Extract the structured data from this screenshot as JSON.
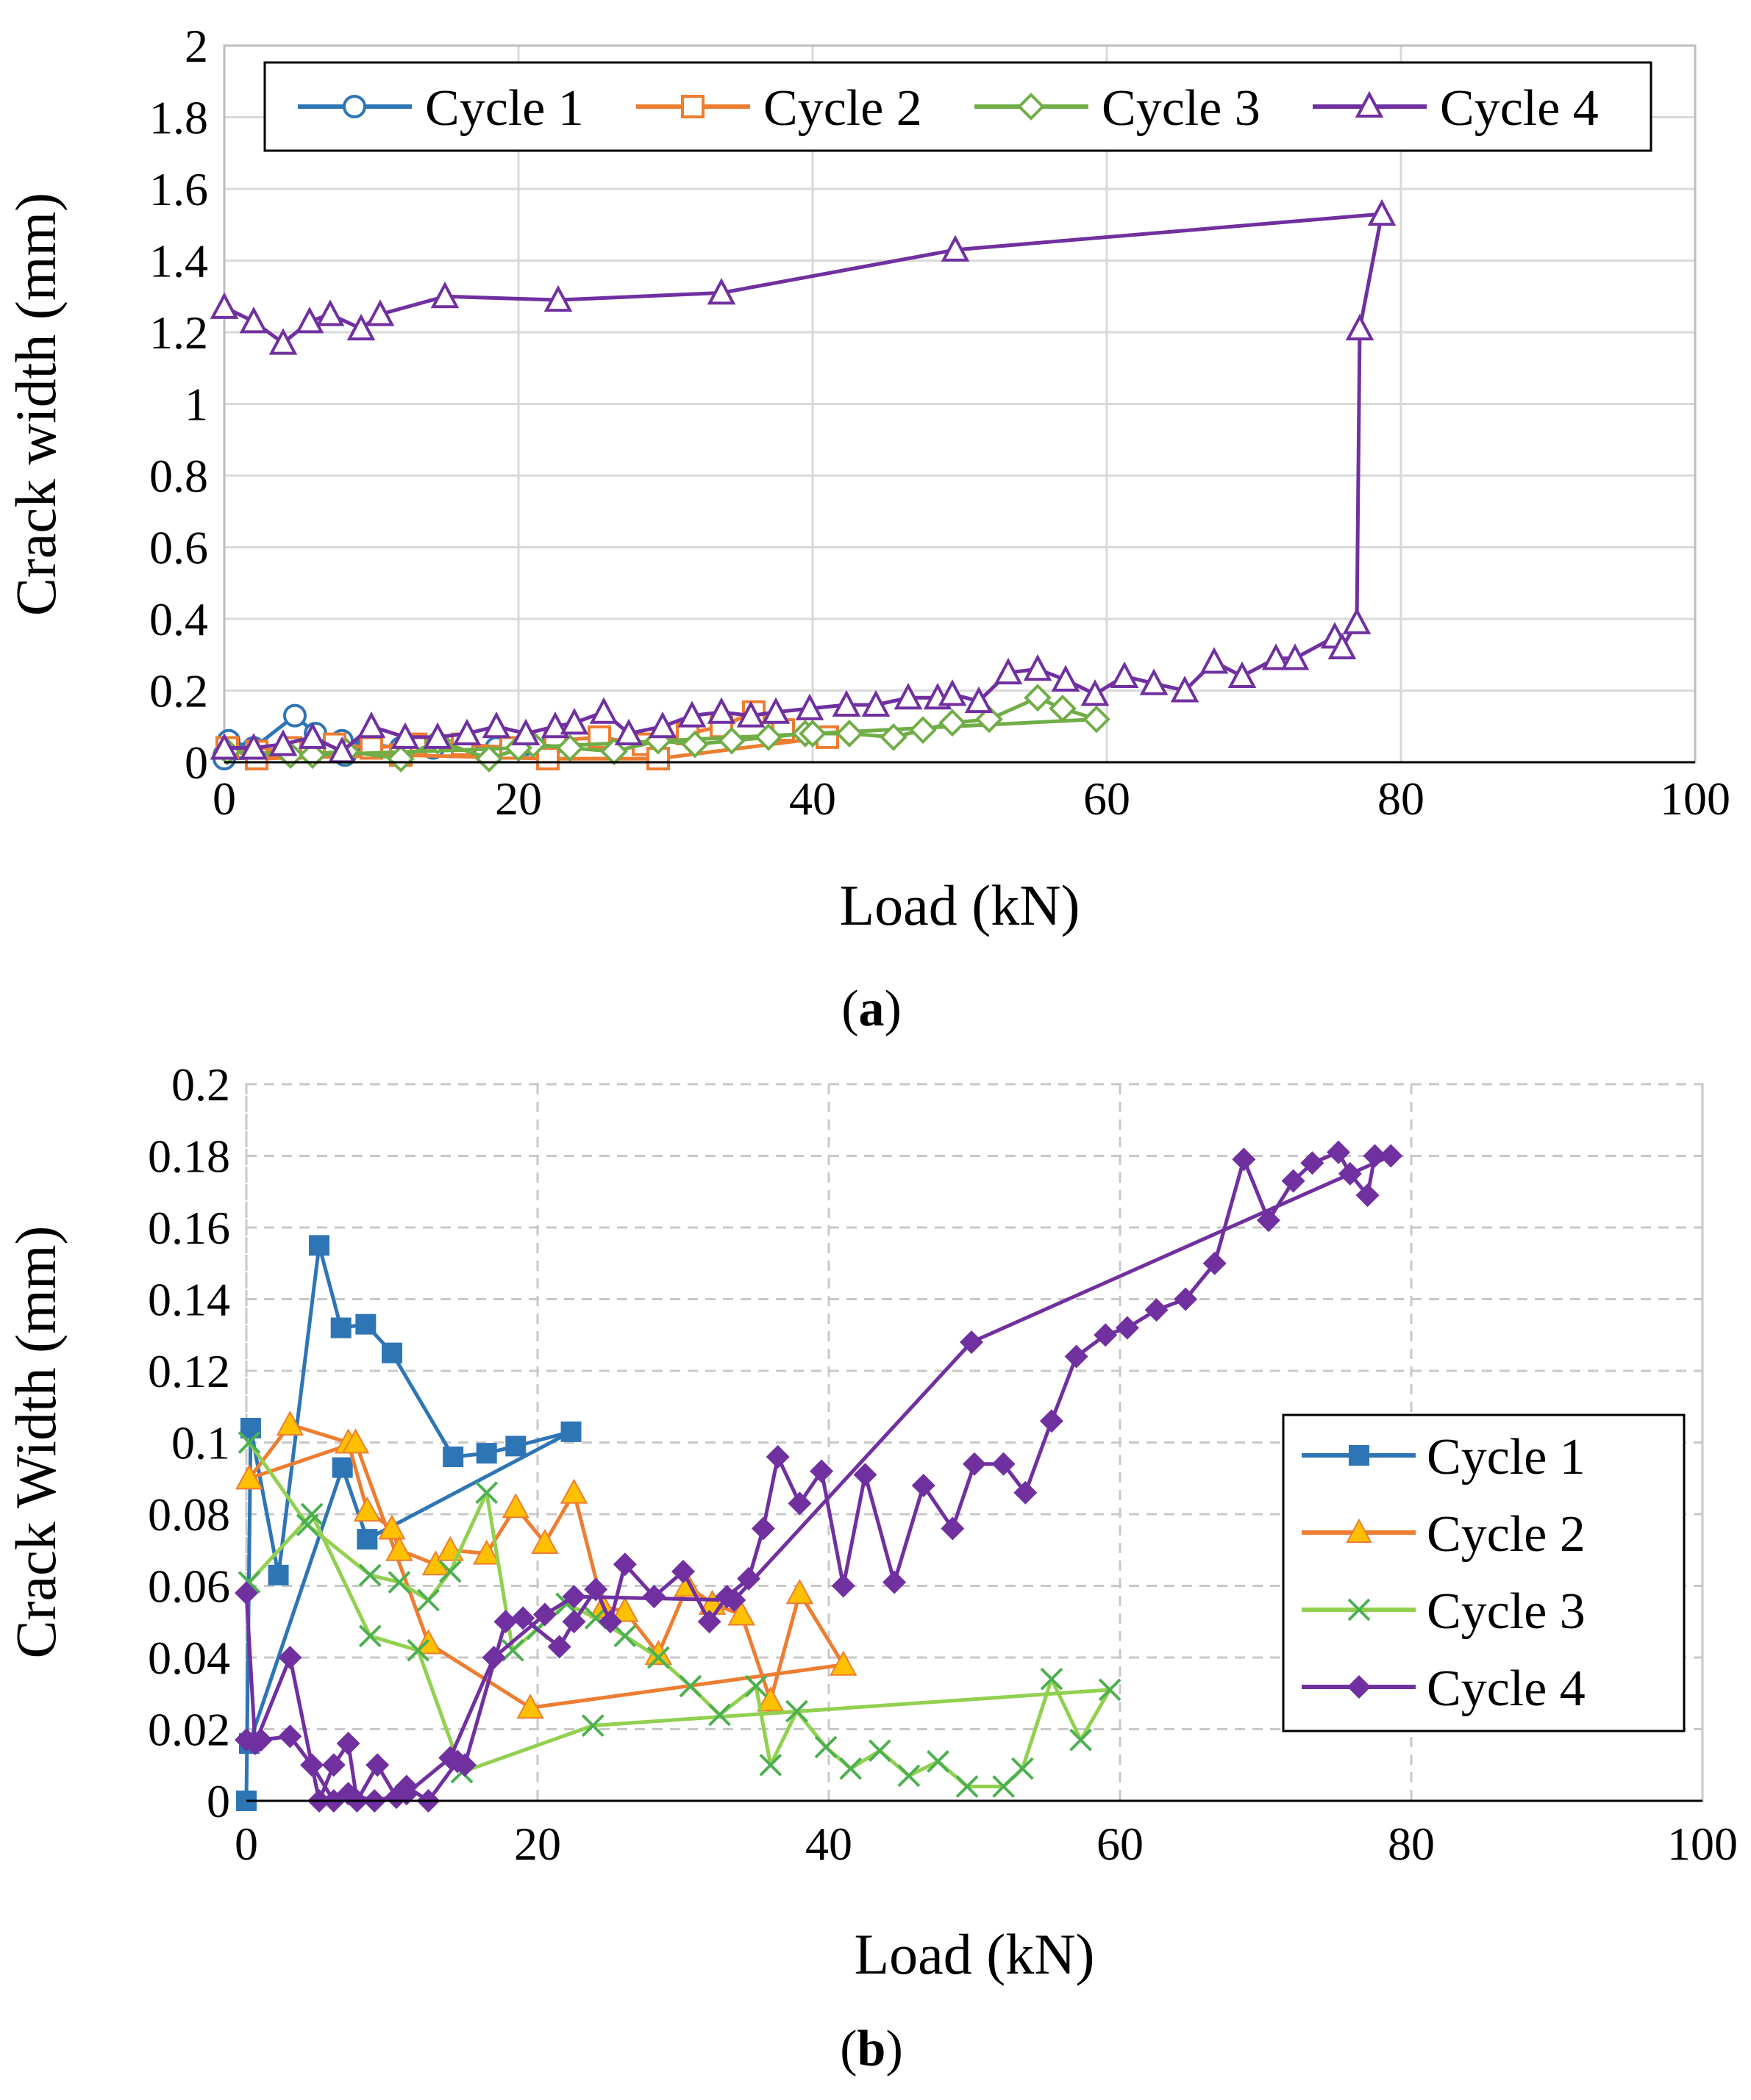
{
  "chart_data": [
    {
      "type": "line",
      "panel": "(a)",
      "caption_letter": "a",
      "xlabel": "Load (kN)",
      "ylabel": "Crack width (mm)",
      "xlim": [
        0,
        100
      ],
      "ylim": [
        0,
        2
      ],
      "xticks": [
        0,
        20,
        40,
        60,
        80,
        100
      ],
      "yticks": [
        0,
        0.2,
        0.4,
        0.6,
        0.8,
        1,
        1.2,
        1.4,
        1.6,
        1.8,
        2
      ],
      "ytick_labels": [
        "0",
        "0.2",
        "0.4",
        "0.6",
        "0.8",
        "1",
        "1.2",
        "1.4",
        "1.6",
        "1.8",
        "2"
      ],
      "grid": "major",
      "legend_position": "top",
      "series": [
        {
          "name": "Cycle 1",
          "color": "#2E75B6",
          "marker": "circle-open",
          "x": [
            0,
            0.3,
            2,
            4.8,
            6.2,
            8,
            9.8,
            12,
            14.2,
            16.5,
            18.5,
            20.5,
            22.3,
            8.2,
            0
          ],
          "y": [
            0.02,
            0.06,
            0.04,
            0.13,
            0.08,
            0.06,
            0.05,
            0.04,
            0.04,
            0.05,
            0.04,
            0.05,
            0.05,
            0.02,
            0.01
          ]
        },
        {
          "name": "Cycle 2",
          "color": "#ED7D31",
          "marker": "square-open",
          "x": [
            0.2,
            2.2,
            4.5,
            7.5,
            10,
            13,
            16.2,
            19.5,
            22.5,
            25.5,
            28.5,
            31.5,
            33.8,
            36,
            38,
            41,
            29.5,
            22,
            12,
            2.2,
            0.2
          ],
          "y": [
            0.04,
            0.03,
            0.04,
            0.05,
            0.04,
            0.05,
            0.05,
            0.04,
            0.06,
            0.07,
            0.05,
            0.08,
            0.1,
            0.14,
            0.09,
            0.07,
            0.01,
            0.01,
            0.02,
            0.01,
            0.04
          ]
        },
        {
          "name": "Cycle 3",
          "color": "#70AD47",
          "marker": "diamond-open",
          "x": [
            0.2,
            4.5,
            8.3,
            12,
            14.5,
            18,
            21,
            23.5,
            26.5,
            29.5,
            32,
            34.5,
            37,
            39.5,
            42.5,
            45.5,
            47.5,
            49.5,
            52,
            55.3,
            57,
            59.3,
            40,
            20,
            6,
            0.2
          ],
          "y": [
            0.03,
            0.02,
            0.03,
            0.01,
            0.06,
            0.01,
            0.05,
            0.04,
            0.03,
            0.06,
            0.05,
            0.06,
            0.07,
            0.08,
            0.08,
            0.07,
            0.09,
            0.11,
            0.12,
            0.18,
            0.15,
            0.12,
            0.08,
            0.04,
            0.02,
            0.03
          ]
        },
        {
          "name": "Cycle 4",
          "color": "#7030A0",
          "marker": "triangle-open",
          "x": [
            0,
            2,
            4,
            6,
            8,
            10,
            12.3,
            14.5,
            16.5,
            18.5,
            20.5,
            22.5,
            23.8,
            25.8,
            27.5,
            29.8,
            31.8,
            33.8,
            35.8,
            37.5,
            39.8,
            42.3,
            44.3,
            46.5,
            48.5,
            49.5,
            51.3,
            53.3,
            55.3,
            57.2,
            59.2,
            61.2,
            63.2,
            65.3,
            67.3,
            69.2,
            71.5,
            72.8,
            75.5,
            76,
            77,
            77.2,
            78.7,
            49.7,
            33.8,
            22.7,
            15,
            10.6,
            9.3,
            7.2,
            5.8,
            4,
            2,
            0
          ],
          "y": [
            0.04,
            0.04,
            0.05,
            0.07,
            0.03,
            0.1,
            0.07,
            0.07,
            0.08,
            0.1,
            0.08,
            0.1,
            0.11,
            0.14,
            0.08,
            0.1,
            0.13,
            0.14,
            0.13,
            0.14,
            0.15,
            0.16,
            0.16,
            0.18,
            0.18,
            0.19,
            0.17,
            0.25,
            0.26,
            0.23,
            0.19,
            0.24,
            0.22,
            0.2,
            0.28,
            0.24,
            0.29,
            0.29,
            0.35,
            0.32,
            0.39,
            1.21,
            1.53,
            1.43,
            1.31,
            1.29,
            1.3,
            1.25,
            1.21,
            1.25,
            1.23,
            1.17,
            1.23,
            1.27
          ]
        }
      ]
    },
    {
      "type": "line",
      "panel": "(b)",
      "caption_letter": "b",
      "xlabel": "Load (kN)",
      "ylabel": "Crack Width (mm)",
      "xlim": [
        0,
        100
      ],
      "ylim": [
        0,
        0.2
      ],
      "xticks": [
        0,
        20,
        40,
        60,
        80,
        100
      ],
      "yticks": [
        0,
        0.02,
        0.04,
        0.06,
        0.08,
        0.1,
        0.12,
        0.14,
        0.16,
        0.18,
        0.2
      ],
      "ytick_labels": [
        "0",
        "0.02",
        "0.04",
        "0.06",
        "0.08",
        "0.1",
        "0.12",
        "0.14",
        "0.16",
        "0.18",
        "0.2"
      ],
      "grid": "dashed",
      "legend_position": "right",
      "series": [
        {
          "name": "Cycle 1",
          "color": "#2E75B6",
          "marker": "square-filled",
          "x": [
            0,
            0.3,
            2.2,
            5,
            6.5,
            8.2,
            10,
            14.2,
            16.5,
            18.5,
            22.3,
            8.3,
            6.6,
            0.2
          ],
          "y": [
            0.0,
            0.104,
            0.063,
            0.155,
            0.132,
            0.133,
            0.125,
            0.096,
            0.097,
            0.099,
            0.103,
            0.073,
            0.093,
            0.016
          ]
        },
        {
          "name": "Cycle 2",
          "color": "#ED7D31",
          "marker": "triangle-filled",
          "marker_fill": "#FFC000",
          "x": [
            0.2,
            3,
            7,
            8.3,
            10,
            10.5,
            13,
            14,
            16.5,
            18.5,
            20.5,
            22.5,
            24.5,
            26,
            28.3,
            30.3,
            32,
            34,
            36,
            38,
            41,
            19.5,
            12.5,
            7.5,
            0.2
          ],
          "y": [
            0.09,
            0.105,
            0.1,
            0.081,
            0.076,
            0.07,
            0.066,
            0.07,
            0.069,
            0.082,
            0.072,
            0.086,
            0.054,
            0.053,
            0.041,
            0.06,
            0.055,
            0.052,
            0.028,
            0.058,
            0.038,
            0.026,
            0.044,
            0.1,
            0.09
          ]
        },
        {
          "name": "Cycle 3",
          "color": "#92D050",
          "marker": "x",
          "marker_color": "#4CB050",
          "x": [
            0.2,
            4.2,
            8.5,
            10.5,
            12.5,
            14,
            16.5,
            18.3,
            20,
            22,
            24,
            26,
            28.3,
            30.5,
            32.5,
            35,
            36,
            37.8,
            39.8,
            41.5,
            43.5,
            45.5,
            47.5,
            49.5,
            52,
            53.3,
            55.3,
            57.3,
            59.3,
            23.8,
            14.8,
            11.8,
            8.5,
            4.5,
            0.2
          ],
          "y": [
            0.1,
            0.077,
            0.063,
            0.061,
            0.056,
            0.064,
            0.086,
            0.042,
            0.048,
            0.055,
            0.051,
            0.046,
            0.04,
            0.032,
            0.024,
            0.032,
            0.01,
            0.025,
            0.015,
            0.009,
            0.014,
            0.007,
            0.011,
            0.004,
            0.004,
            0.009,
            0.034,
            0.017,
            0.031,
            0.021,
            0.008,
            0.042,
            0.046,
            0.08,
            0.061
          ]
        },
        {
          "name": "Cycle 4",
          "color": "#7030A0",
          "marker": "diamond-filled",
          "x": [
            0,
            0.6,
            3,
            5,
            6,
            7,
            7.6,
            9,
            10.3,
            11,
            12.5,
            14.5,
            15,
            17.8,
            19,
            21.5,
            22.5,
            24,
            25,
            26,
            28,
            30,
            31.8,
            33,
            34.5,
            35.5,
            36.5,
            38,
            39.5,
            41,
            42.5,
            44.5,
            46.5,
            48.5,
            50,
            52,
            53.5,
            55.3,
            57,
            59,
            60.5,
            62.5,
            64.5,
            66.5,
            68.5,
            70.2,
            71.9,
            73.2,
            75,
            75.8,
            77,
            77.5,
            78.6,
            49.8,
            33.5,
            22.5,
            20.5,
            17,
            14,
            11,
            8.8,
            7,
            6,
            4.5,
            3,
            1,
            0
          ],
          "y": [
            0.058,
            0.016,
            0.04,
            0.0,
            0.01,
            0.016,
            0.0,
            0.01,
            0.001,
            0.004,
            0.0,
            0.011,
            0.01,
            0.05,
            0.051,
            0.043,
            0.05,
            0.059,
            0.05,
            0.066,
            0.057,
            0.064,
            0.05,
            0.057,
            0.062,
            0.076,
            0.096,
            0.083,
            0.092,
            0.06,
            0.091,
            0.061,
            0.088,
            0.076,
            0.094,
            0.094,
            0.086,
            0.106,
            0.124,
            0.13,
            0.132,
            0.137,
            0.14,
            0.15,
            0.179,
            0.162,
            0.173,
            0.178,
            0.181,
            0.175,
            0.169,
            0.18,
            0.18,
            0.128,
            0.056,
            0.057,
            0.052,
            0.04,
            0.012,
            0.002,
            0.0,
            0.002,
            0.0,
            0.01,
            0.018,
            0.017,
            0.017
          ]
        }
      ]
    }
  ]
}
